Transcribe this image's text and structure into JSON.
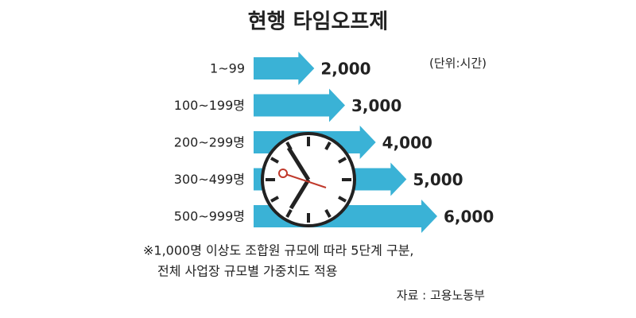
{
  "chart_data": {
    "type": "arrow-bar",
    "title": "현행 타임오프제",
    "unit_label": "(단위:시간)",
    "categories": [
      "1~99",
      "100~199명",
      "200~299명",
      "300~499명",
      "500~999명"
    ],
    "values": [
      2000,
      3000,
      4000,
      5000,
      6000
    ],
    "value_labels": [
      "2,000",
      "3,000",
      "4,000",
      "5,000",
      "6,000"
    ],
    "color": "#3ab2d6",
    "xlim": [
      0,
      6000
    ],
    "notes": [
      "※1,000명 이상도 조합원 규모에 따라 5단계 구분,",
      "전체 사업장 규모별 가중치도 적용"
    ],
    "source": "자료 : 고용노동부"
  }
}
